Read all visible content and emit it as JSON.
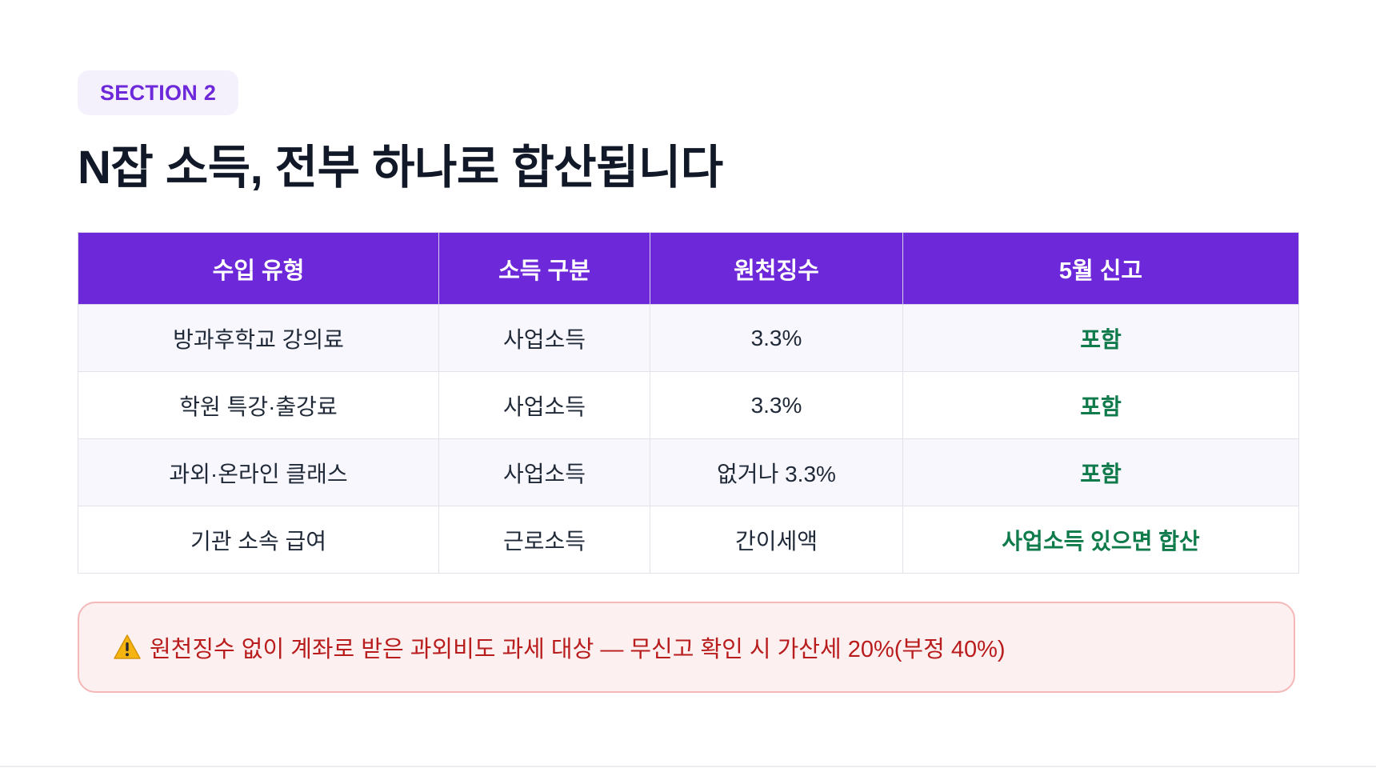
{
  "section_badge": "SECTION 2",
  "title": "N잡 소득, 전부 하나로 합산됩니다",
  "table": {
    "headers": [
      "수입 유형",
      "소득 구분",
      "원천징수",
      "5월 신고"
    ],
    "rows": [
      [
        "방과후학교 강의료",
        "사업소득",
        "3.3%",
        "포함"
      ],
      [
        "학원 특강·출강료",
        "사업소득",
        "3.3%",
        "포함"
      ],
      [
        "과외·온라인 클래스",
        "사업소득",
        "없거나 3.3%",
        "포함"
      ],
      [
        "기관 소속 급여",
        "근로소득",
        "간이세액",
        "사업소득 있으면 합산"
      ]
    ]
  },
  "warning": {
    "icon": "warning-icon",
    "text": "원천징수 없이 계좌로 받은 과외비도 과세 대상 — 무신고 확인 시 가산세 20%(부정 40%)"
  },
  "colors": {
    "accent": "#6d28d9",
    "report_green": "#0f7a4a",
    "warning_red": "#b91c1c"
  }
}
